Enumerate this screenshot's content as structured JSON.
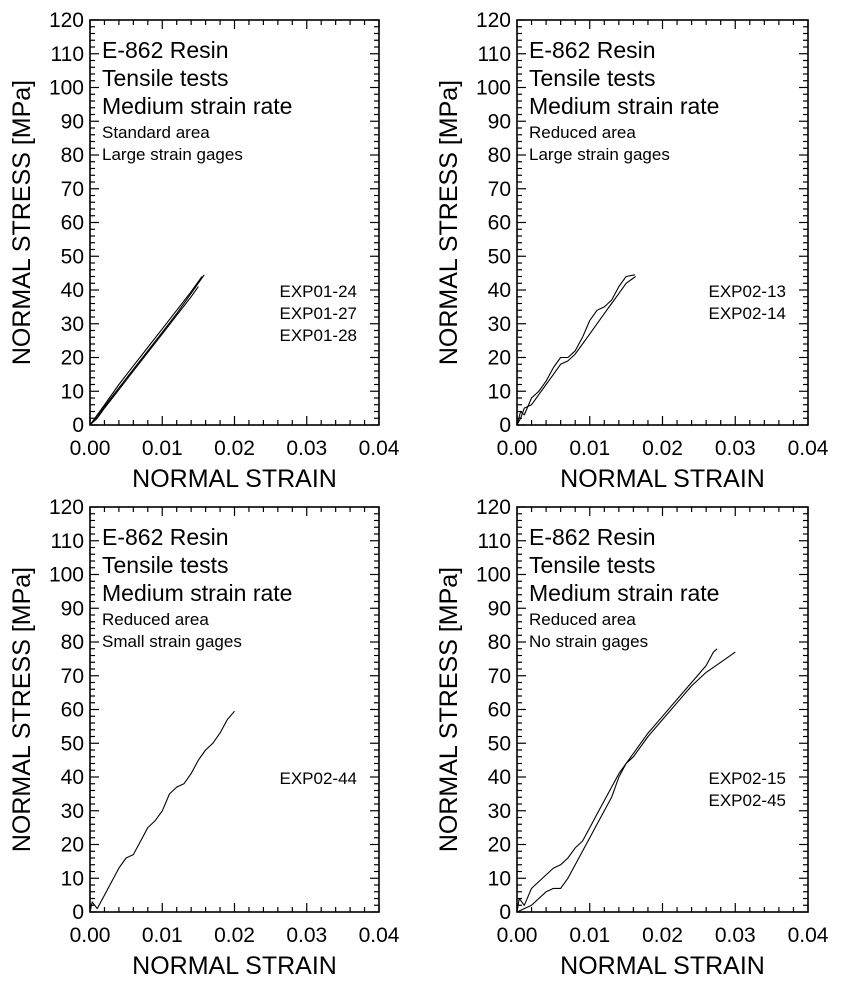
{
  "chart_data": [
    {
      "type": "line",
      "xlabel": "NORMAL STRAIN",
      "ylabel": "NORMAL STRESS [MPa]",
      "xlim": [
        0,
        0.04
      ],
      "ylim": [
        0,
        120
      ],
      "x_ticks": [
        "0.00",
        "0.01",
        "0.02",
        "0.03",
        "0.04"
      ],
      "y_ticks": [
        "0",
        "10",
        "20",
        "30",
        "40",
        "50",
        "60",
        "70",
        "80",
        "90",
        "100",
        "110",
        "120"
      ],
      "annotation_lines": [
        "E-862 Resin",
        "Tensile tests",
        "Medium strain rate"
      ],
      "annotation_small_lines": [
        "Standard area",
        "Large strain gages"
      ],
      "legend": [
        "EXP01-24",
        "EXP01-27",
        "EXP01-28"
      ],
      "series": [
        {
          "name": "EXP01-24",
          "x": [
            0,
            0.001,
            0.002,
            0.004,
            0.006,
            0.008,
            0.01,
            0.012,
            0.014,
            0.0158
          ],
          "y": [
            0,
            2.5,
            5.5,
            11,
            16.5,
            22,
            27.5,
            33,
            39,
            44.5
          ]
        },
        {
          "name": "EXP01-27",
          "x": [
            0,
            0.001,
            0.002,
            0.004,
            0.006,
            0.008,
            0.01,
            0.012,
            0.014,
            0.0155
          ],
          "y": [
            0,
            3,
            6,
            12,
            17.5,
            23,
            28.5,
            34,
            39.5,
            44
          ]
        },
        {
          "name": "EXP01-28",
          "x": [
            0,
            0.001,
            0.002,
            0.004,
            0.006,
            0.008,
            0.01,
            0.012,
            0.014,
            0.015
          ],
          "y": [
            0,
            2,
            5,
            10.5,
            16,
            21.5,
            27,
            32.5,
            38,
            41
          ]
        }
      ]
    },
    {
      "type": "line",
      "xlabel": "NORMAL STRAIN",
      "ylabel": "NORMAL STRESS [MPa]",
      "xlim": [
        0,
        0.04
      ],
      "ylim": [
        0,
        120
      ],
      "x_ticks": [
        "0.00",
        "0.01",
        "0.02",
        "0.03",
        "0.04"
      ],
      "y_ticks": [
        "0",
        "10",
        "20",
        "30",
        "40",
        "50",
        "60",
        "70",
        "80",
        "90",
        "100",
        "110",
        "120"
      ],
      "annotation_lines": [
        "E-862 Resin",
        "Tensile tests",
        "Medium strain rate"
      ],
      "annotation_small_lines": [
        "Reduced area",
        "Large strain gages"
      ],
      "legend": [
        "EXP02-13",
        "EXP02-14"
      ],
      "series": [
        {
          "name": "EXP02-13",
          "x": [
            0,
            0.0005,
            0.001,
            0.002,
            0.003,
            0.004,
            0.005,
            0.006,
            0.007,
            0.008,
            0.009,
            0.01,
            0.011,
            0.012,
            0.013,
            0.014,
            0.015,
            0.0162
          ],
          "y": [
            0,
            4,
            3,
            8,
            10,
            13,
            17,
            20,
            20,
            22,
            26,
            31,
            34,
            35,
            37,
            41,
            44,
            44.5
          ]
        },
        {
          "name": "EXP02-14",
          "x": [
            0,
            0.0005,
            0.001,
            0.002,
            0.003,
            0.004,
            0.005,
            0.006,
            0.007,
            0.008,
            0.009,
            0.01,
            0.011,
            0.012,
            0.013,
            0.014,
            0.015,
            0.0163
          ],
          "y": [
            0,
            2,
            5,
            6,
            9,
            12,
            15,
            18,
            19,
            21,
            24,
            27,
            30,
            33,
            36,
            39,
            42,
            44
          ]
        }
      ]
    },
    {
      "type": "line",
      "xlabel": "NORMAL STRAIN",
      "ylabel": "NORMAL STRESS [MPa]",
      "xlim": [
        0,
        0.04
      ],
      "ylim": [
        0,
        120
      ],
      "x_ticks": [
        "0.00",
        "0.01",
        "0.02",
        "0.03",
        "0.04"
      ],
      "y_ticks": [
        "0",
        "10",
        "20",
        "30",
        "40",
        "50",
        "60",
        "70",
        "80",
        "90",
        "100",
        "110",
        "120"
      ],
      "annotation_lines": [
        "E-862 Resin",
        "Tensile tests",
        "Medium strain rate"
      ],
      "annotation_small_lines": [
        "Reduced area",
        "Small strain gages"
      ],
      "legend": [
        "EXP02-44"
      ],
      "series": [
        {
          "name": "EXP02-44",
          "x": [
            0,
            0.0003,
            0.001,
            0.002,
            0.003,
            0.004,
            0.005,
            0.006,
            0.007,
            0.008,
            0.009,
            0.01,
            0.011,
            0.012,
            0.013,
            0.014,
            0.015,
            0.016,
            0.017,
            0.018,
            0.019,
            0.02
          ],
          "y": [
            0,
            3,
            1,
            5,
            9,
            13,
            16,
            17,
            21,
            25,
            27,
            30,
            35,
            37,
            38,
            41,
            45,
            48,
            50,
            53,
            57,
            59.5
          ]
        }
      ]
    },
    {
      "type": "line",
      "xlabel": "NORMAL STRAIN",
      "ylabel": "NORMAL STRESS [MPa]",
      "xlim": [
        0,
        0.04
      ],
      "ylim": [
        0,
        120
      ],
      "x_ticks": [
        "0.00",
        "0.01",
        "0.02",
        "0.03",
        "0.04"
      ],
      "y_ticks": [
        "0",
        "10",
        "20",
        "30",
        "40",
        "50",
        "60",
        "70",
        "80",
        "90",
        "100",
        "110",
        "120"
      ],
      "annotation_lines": [
        "E-862 Resin",
        "Tensile tests",
        "Medium strain rate"
      ],
      "annotation_small_lines": [
        "Reduced area",
        "No strain gages"
      ],
      "legend": [
        "EXP02-15",
        "EXP02-45"
      ],
      "series": [
        {
          "name": "EXP02-15",
          "x": [
            0,
            0.0003,
            0.001,
            0.002,
            0.003,
            0.004,
            0.005,
            0.006,
            0.007,
            0.008,
            0.009,
            0.01,
            0.011,
            0.012,
            0.013,
            0.014,
            0.015,
            0.016,
            0.018,
            0.02,
            0.022,
            0.024,
            0.026,
            0.027,
            0.0275
          ],
          "y": [
            0,
            4,
            2,
            7,
            9,
            11,
            13,
            14,
            16,
            19,
            21,
            25,
            29,
            33,
            37,
            41,
            44,
            47,
            53,
            58,
            63,
            68,
            73,
            77,
            78
          ]
        },
        {
          "name": "EXP02-45",
          "x": [
            0,
            0.001,
            0.002,
            0.003,
            0.004,
            0.005,
            0.006,
            0.007,
            0.008,
            0.009,
            0.01,
            0.011,
            0.012,
            0.013,
            0.014,
            0.015,
            0.016,
            0.018,
            0.02,
            0.022,
            0.024,
            0.026,
            0.028,
            0.03
          ],
          "y": [
            0,
            1,
            2,
            4,
            6,
            7,
            7,
            10,
            14,
            18,
            22,
            26,
            30,
            34,
            40,
            44,
            46,
            52,
            57,
            62,
            67,
            71,
            74,
            77
          ]
        }
      ]
    }
  ]
}
